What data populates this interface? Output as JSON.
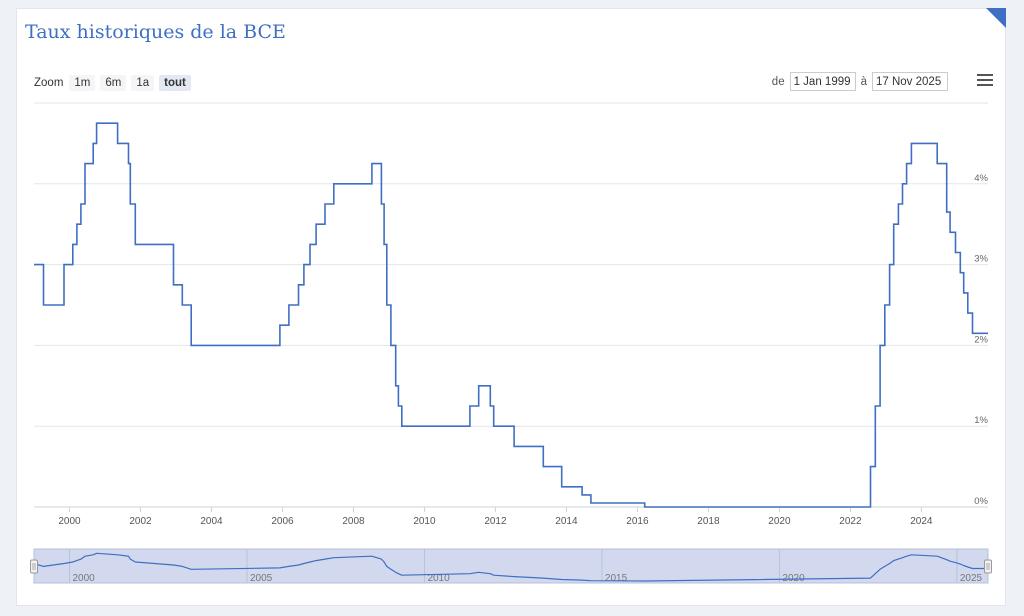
{
  "title": "Taux historiques de la BCE",
  "zoom": {
    "label": "Zoom",
    "buttons": [
      "1m",
      "6m",
      "1a",
      "tout"
    ],
    "active": "tout"
  },
  "range": {
    "from_label": "de",
    "from_value": "1 Jan 1999",
    "to_label": "à",
    "to_value": "17 Nov 2025"
  },
  "menu_icon": "hamburger-icon",
  "colors": {
    "line": "#3f6fc4",
    "navigator_fill": "#d2d9ee",
    "title": "#3f6fc4"
  },
  "chart_data": {
    "type": "line",
    "step": true,
    "title": "Taux historiques de la BCE",
    "xlabel": "",
    "ylabel": "",
    "x_range": [
      "1999-01-01",
      "2025-11-17"
    ],
    "y_range": [
      0,
      5
    ],
    "x_ticks": [
      "2000",
      "2002",
      "2004",
      "2006",
      "2008",
      "2010",
      "2012",
      "2014",
      "2016",
      "2018",
      "2020",
      "2022",
      "2024"
    ],
    "y_ticks": [
      "0%",
      "1%",
      "2%",
      "3%",
      "4%"
    ],
    "grid": true,
    "navigator_ticks": [
      "2000",
      "2005",
      "2010",
      "2015",
      "2020",
      "2025"
    ],
    "series": [
      {
        "points": [
          [
            "1999-01-01",
            3.0
          ],
          [
            "1999-04-09",
            2.5
          ],
          [
            "1999-11-05",
            3.0
          ],
          [
            "2000-02-04",
            3.25
          ],
          [
            "2000-03-17",
            3.5
          ],
          [
            "2000-04-28",
            3.75
          ],
          [
            "2000-06-09",
            4.25
          ],
          [
            "2000-09-01",
            4.5
          ],
          [
            "2000-10-06",
            4.75
          ],
          [
            "2001-05-11",
            4.5
          ],
          [
            "2001-08-31",
            4.25
          ],
          [
            "2001-09-18",
            3.75
          ],
          [
            "2001-11-09",
            3.25
          ],
          [
            "2002-12-06",
            2.75
          ],
          [
            "2003-03-07",
            2.5
          ],
          [
            "2003-06-06",
            2.0
          ],
          [
            "2005-12-06",
            2.25
          ],
          [
            "2006-03-08",
            2.5
          ],
          [
            "2006-06-15",
            2.75
          ],
          [
            "2006-08-09",
            3.0
          ],
          [
            "2006-10-11",
            3.25
          ],
          [
            "2006-12-13",
            3.5
          ],
          [
            "2007-03-14",
            3.75
          ],
          [
            "2007-06-13",
            4.0
          ],
          [
            "2008-07-09",
            4.25
          ],
          [
            "2008-10-15",
            3.75
          ],
          [
            "2008-11-12",
            3.25
          ],
          [
            "2008-12-10",
            2.5
          ],
          [
            "2009-01-21",
            2.0
          ],
          [
            "2009-03-11",
            1.5
          ],
          [
            "2009-04-08",
            1.25
          ],
          [
            "2009-05-13",
            1.0
          ],
          [
            "2011-04-13",
            1.25
          ],
          [
            "2011-07-13",
            1.5
          ],
          [
            "2011-11-09",
            1.25
          ],
          [
            "2011-12-14",
            1.0
          ],
          [
            "2012-07-11",
            0.75
          ],
          [
            "2013-05-08",
            0.5
          ],
          [
            "2013-11-13",
            0.25
          ],
          [
            "2014-06-11",
            0.15
          ],
          [
            "2014-09-10",
            0.05
          ],
          [
            "2016-03-16",
            0.0
          ],
          [
            "2022-07-27",
            0.5
          ],
          [
            "2022-09-14",
            1.25
          ],
          [
            "2022-11-02",
            2.0
          ],
          [
            "2022-12-21",
            2.5
          ],
          [
            "2023-02-08",
            3.0
          ],
          [
            "2023-03-22",
            3.5
          ],
          [
            "2023-05-10",
            3.75
          ],
          [
            "2023-06-21",
            4.0
          ],
          [
            "2023-08-02",
            4.25
          ],
          [
            "2023-09-20",
            4.5
          ],
          [
            "2024-06-12",
            4.25
          ],
          [
            "2024-09-18",
            3.65
          ],
          [
            "2024-10-23",
            3.4
          ],
          [
            "2024-12-18",
            3.15
          ],
          [
            "2025-02-05",
            2.9
          ],
          [
            "2025-03-12",
            2.65
          ],
          [
            "2025-04-23",
            2.4
          ],
          [
            "2025-06-11",
            2.15
          ],
          [
            "2025-11-17",
            2.15
          ]
        ]
      }
    ]
  }
}
